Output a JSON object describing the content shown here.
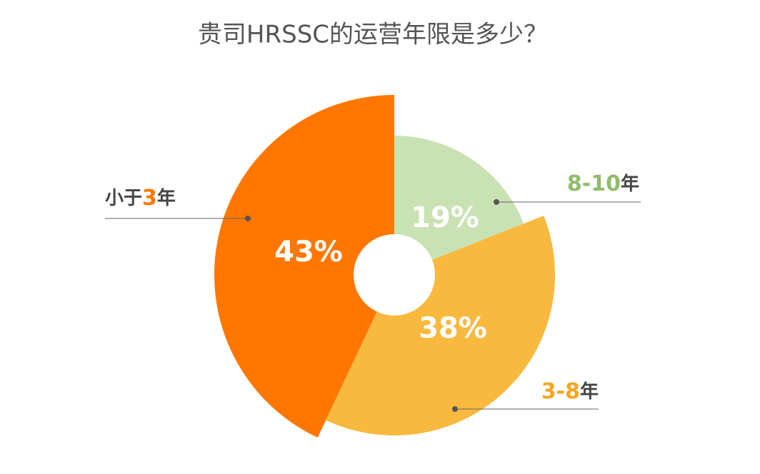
{
  "chart_data": {
    "type": "pie",
    "title": "贵司HRSSC的运营年限是多少？",
    "categories": [
      "8-10年",
      "3-8年",
      "小于3年"
    ],
    "values": [
      19,
      38,
      43
    ],
    "value_labels": [
      "19%",
      "38%",
      "43%"
    ],
    "colors": [
      "#c9e2b3",
      "#f8b93e",
      "#ff7700"
    ]
  }
}
